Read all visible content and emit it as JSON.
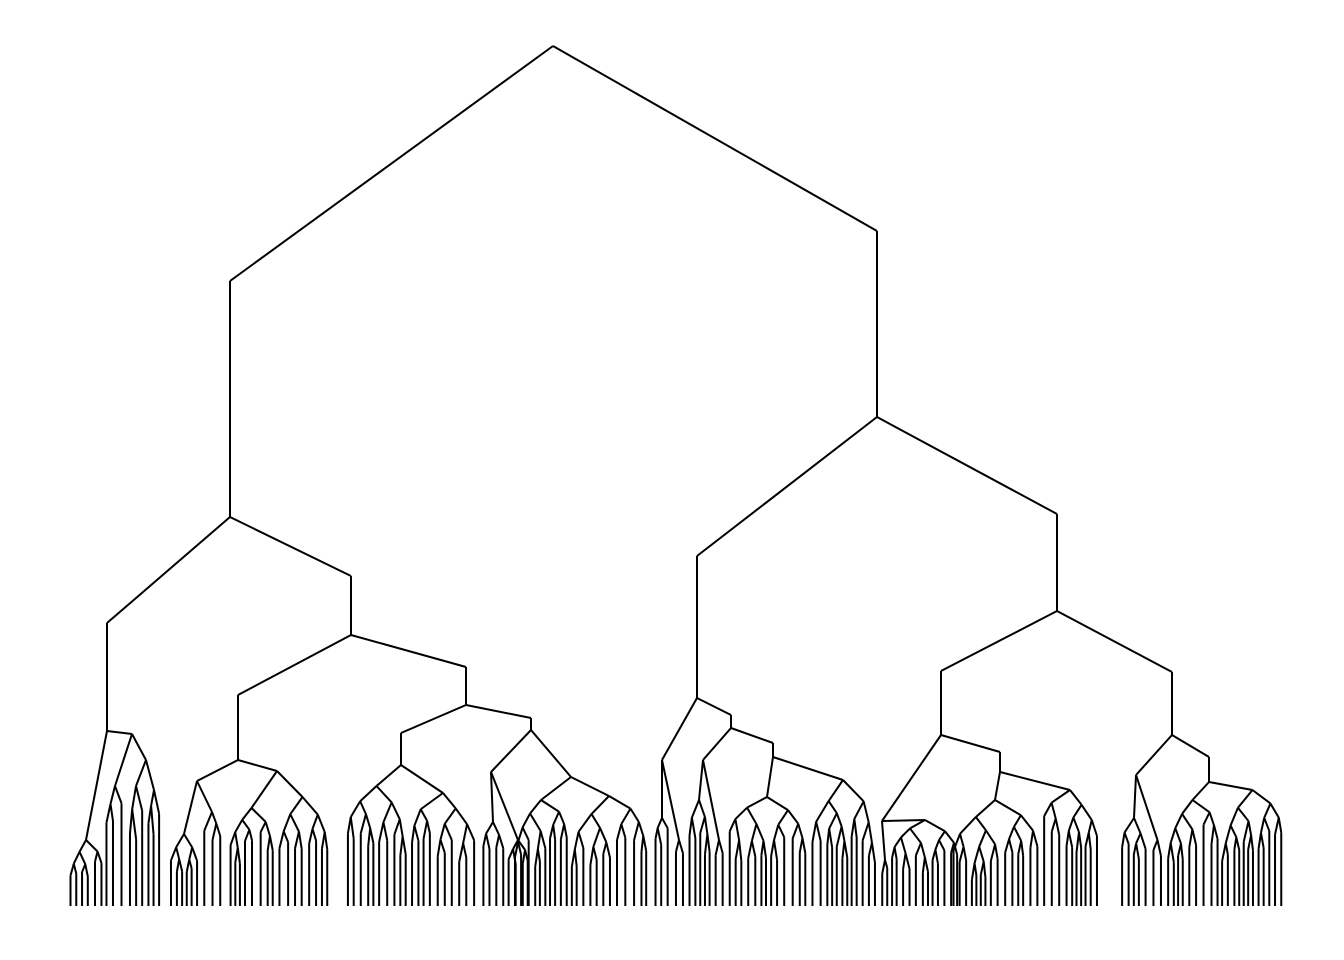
{
  "diagram": {
    "kind": "dendrogram",
    "orientation": "root-top",
    "leaf_count": 192,
    "stroke_color": "#000000",
    "background_color": "#ffffff",
    "labels_visible": false
  }
}
